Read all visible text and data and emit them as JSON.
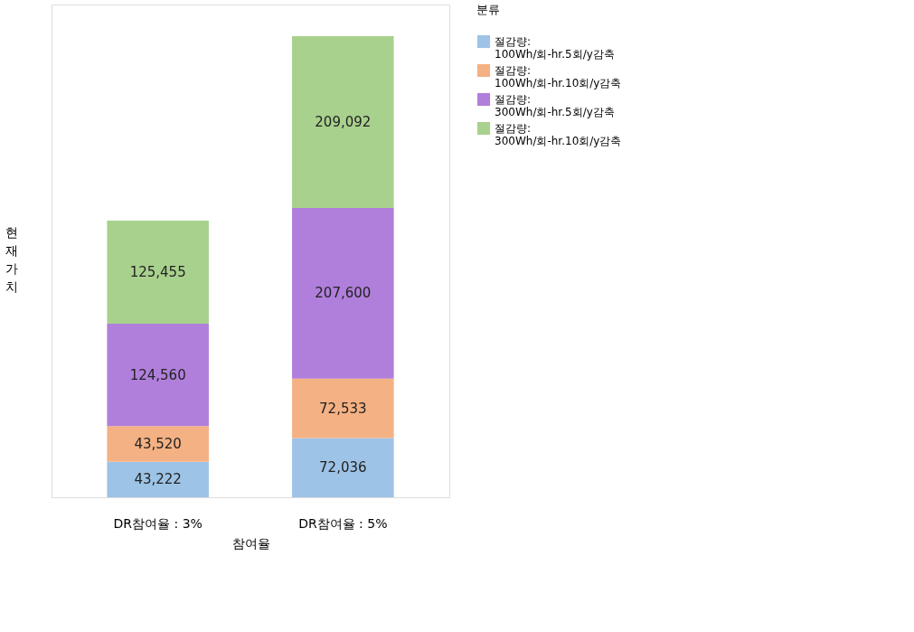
{
  "chart_data": {
    "type": "bar",
    "stacked": true,
    "xlabel": "참여율",
    "ylabel": "현재가치",
    "legend_title": "분류",
    "legend": "right",
    "tick_labels": "x",
    "categories": [
      "DR참여율 : 3%",
      "DR참여율 : 5%"
    ],
    "series": [
      {
        "name": "절감량: 100Wh/회-hr.5회/y감축",
        "color": "#9dc3e6",
        "values": [
          43222,
          72036
        ],
        "value_labels": [
          "43,222",
          "72,036"
        ]
      },
      {
        "name": "절감량: 100Wh/회-hr.10회/y감축",
        "color": "#f4b183",
        "values": [
          43520,
          72533
        ],
        "value_labels": [
          "43,520",
          "72,533"
        ]
      },
      {
        "name": "절감량: 300Wh/회-hr.5회/y감축",
        "color": "#b07fdb",
        "values": [
          124560,
          207600
        ],
        "value_labels": [
          "124,560",
          "207,600"
        ]
      },
      {
        "name": "절감량: 300Wh/회-hr.10회/y감축",
        "color": "#a9d18e",
        "values": [
          125455,
          209092
        ],
        "value_labels": [
          "125,455",
          "209,092"
        ]
      }
    ]
  }
}
